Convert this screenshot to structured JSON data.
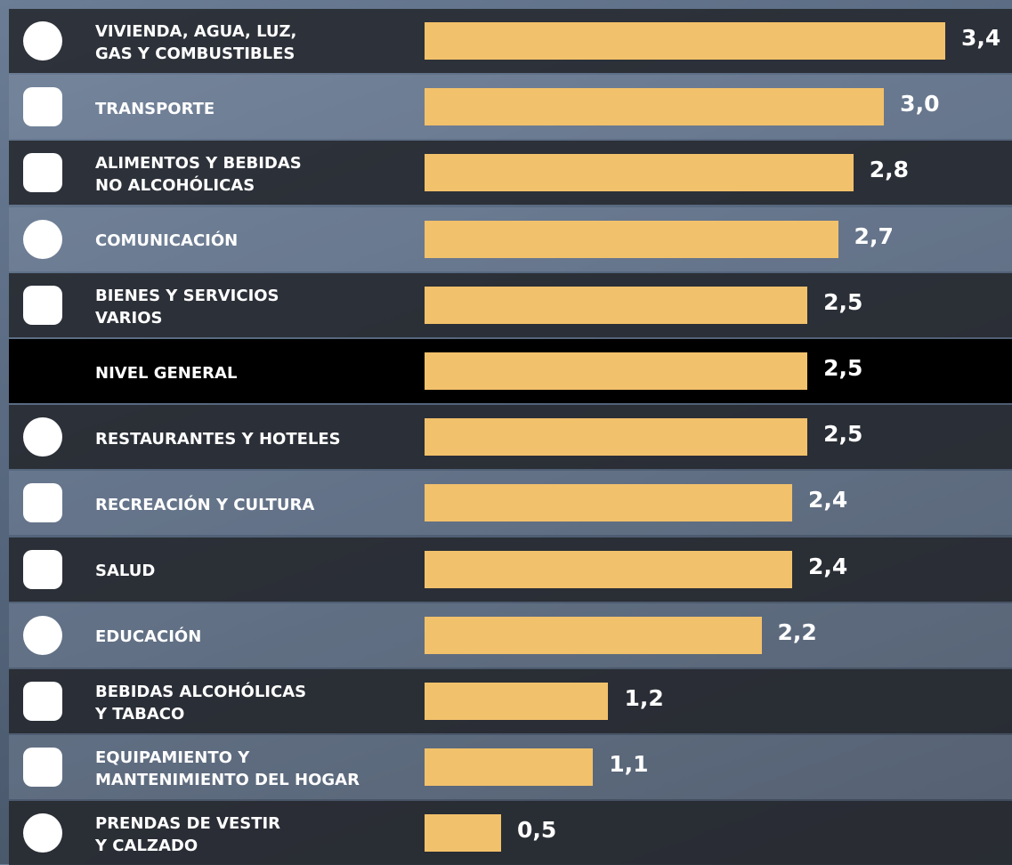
{
  "chart_data": {
    "type": "bar",
    "orientation": "horizontal",
    "color": "#f2c16b",
    "categories": [
      "VIVIENDA, AGUA, LUZ,\nGAS Y COMBUSTIBLES",
      "TRANSPORTE",
      "ALIMENTOS Y BEBIDAS\nNO ALCOHÓLICAS",
      "COMUNICACIÓN",
      "BIENES Y SERVICIOS\nVARIOS",
      "NIVEL GENERAL",
      "RESTAURANTES Y HOTELES",
      "RECREACIÓN Y CULTURA",
      "SALUD",
      "EDUCACIÓN",
      "BEBIDAS ALCOHÓLICAS\nY TABACO",
      "EQUIPAMIENTO Y\nMANTENIMIENTO DEL HOGAR",
      "PRENDAS DE VESTIR\nY CALZADO"
    ],
    "values": [
      3.4,
      3.0,
      2.8,
      2.7,
      2.5,
      2.5,
      2.5,
      2.4,
      2.4,
      2.2,
      1.2,
      1.1,
      0.5
    ],
    "value_labels": [
      "3,4",
      "3,0",
      "2,8",
      "2,7",
      "2,5",
      "2,5",
      "2,5",
      "2,4",
      "2,4",
      "2,2",
      "1,2",
      "1,1",
      "0,5"
    ],
    "highlight_index": 5
  }
}
